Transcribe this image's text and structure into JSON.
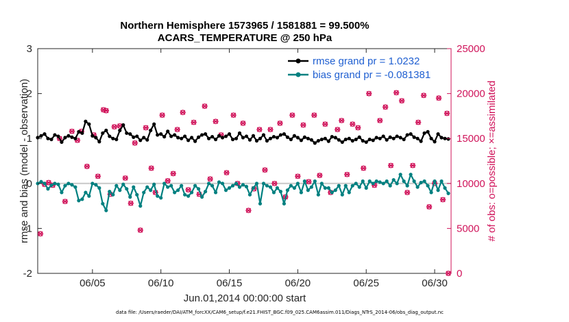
{
  "chart_data": {
    "type": "line",
    "title_line1": "Northern Hemisphere 1573965 / 1581881 = 99.500%",
    "title_line2": "ACARS_TEMPERATURE @ 250 hPa",
    "xlabel": "Jun.01,2014 00:00:00 start",
    "ylabel_left": "rmse and bias (model - observation)",
    "ylabel_right": "# of obs: o=possible; ×=assimilated",
    "xlim": [
      1,
      31.2
    ],
    "ylim_left": [
      -2,
      3
    ],
    "ylim_right": [
      0,
      25000
    ],
    "x_ticks": [
      5,
      10,
      15,
      20,
      25,
      30
    ],
    "x_tick_labels": [
      "06/05",
      "06/10",
      "06/15",
      "06/20",
      "06/25",
      "06/30"
    ],
    "y_ticks_left": [
      -2,
      -1,
      0,
      1,
      2,
      3
    ],
    "y_tick_labels_left": [
      "-2",
      "-1",
      "0",
      "1",
      "2",
      "3"
    ],
    "y_ticks_right": [
      0,
      5000,
      10000,
      15000,
      20000,
      25000
    ],
    "y_tick_labels_right": [
      "0",
      "5000",
      "10000",
      "15000",
      "20000",
      "25000"
    ],
    "zero_line": 0,
    "legend": {
      "location": "top-right",
      "entries": [
        "rmse grand pr = 1.0232",
        "bias grand pr = -0.081381"
      ]
    },
    "colors": {
      "rmse": "#000000",
      "bias": "#008080",
      "obs": "#d0135a",
      "axis": "#262626",
      "zero_line": "#c8c8c8",
      "legend_text": "#1f5fd1"
    },
    "x": [
      1.0,
      1.25,
      1.5,
      1.75,
      2.0,
      2.25,
      2.5,
      2.75,
      3.0,
      3.25,
      3.5,
      3.75,
      4.0,
      4.25,
      4.5,
      4.75,
      5.0,
      5.25,
      5.5,
      5.75,
      6.0,
      6.25,
      6.5,
      6.75,
      7.0,
      7.25,
      7.5,
      7.75,
      8.0,
      8.25,
      8.5,
      8.75,
      9.0,
      9.25,
      9.5,
      9.75,
      10.0,
      10.25,
      10.5,
      10.75,
      11.0,
      11.25,
      11.5,
      11.75,
      12.0,
      12.25,
      12.5,
      12.75,
      13.0,
      13.25,
      13.5,
      13.75,
      14.0,
      14.25,
      14.5,
      14.75,
      15.0,
      15.25,
      15.5,
      15.75,
      16.0,
      16.25,
      16.5,
      16.75,
      17.0,
      17.25,
      17.5,
      17.75,
      18.0,
      18.25,
      18.5,
      18.75,
      19.0,
      19.25,
      19.5,
      19.75,
      20.0,
      20.25,
      20.5,
      20.75,
      21.0,
      21.25,
      21.5,
      21.75,
      22.0,
      22.25,
      22.5,
      22.75,
      23.0,
      23.25,
      23.5,
      23.75,
      24.0,
      24.25,
      24.5,
      24.75,
      25.0,
      25.25,
      25.5,
      25.75,
      26.0,
      26.25,
      26.5,
      26.75,
      27.0,
      27.25,
      27.5,
      27.75,
      28.0,
      28.25,
      28.5,
      28.75,
      29.0,
      29.25,
      29.5,
      29.75,
      30.0,
      30.25,
      30.5,
      30.75,
      31.0
    ],
    "series": [
      {
        "name": "rmse",
        "values": [
          1.02,
          1.06,
          1.1,
          1.0,
          0.98,
          1.08,
          1.05,
          0.92,
          1.02,
          1.06,
          1.03,
          1.0,
          1.15,
          1.12,
          1.38,
          1.32,
          1.06,
          1.02,
          0.93,
          1.12,
          1.18,
          1.05,
          1.0,
          0.98,
          1.18,
          1.3,
          1.12,
          1.1,
          1.03,
          1.05,
          0.96,
          1.02,
          0.97,
          1.18,
          1.32,
          1.08,
          1.1,
          1.04,
          1.16,
          1.05,
          1.08,
          1.02,
          1.0,
          1.05,
          0.96,
          1.02,
          0.94,
          1.03,
          1.08,
          1.1,
          1.0,
          1.04,
          0.98,
          1.06,
          1.02,
          1.05,
          1.1,
          0.98,
          1.0,
          1.12,
          1.02,
          1.05,
          0.97,
          1.06,
          0.95,
          1.0,
          1.08,
          0.95,
          1.0,
          1.04,
          1.02,
          1.08,
          1.1,
          1.03,
          0.98,
          1.06,
          1.02,
          0.96,
          1.03,
          1.0,
          0.97,
          0.9,
          0.95,
          0.98,
          1.0,
          0.94,
          1.04,
          1.02,
          0.97,
          0.92,
          0.98,
          1.0,
          0.95,
          0.98,
          1.03,
          0.95,
          0.92,
          0.98,
          0.96,
          1.02,
          1.0,
          1.05,
          0.97,
          1.03,
          1.0,
          1.05,
          1.02,
          0.98,
          1.08,
          1.1,
          1.03,
          1.0,
          0.94,
          1.12,
          1.15,
          1.0,
          0.93,
          1.1,
          1.02,
          1.0,
          0.99
        ]
      },
      {
        "name": "bias",
        "values": [
          0.0,
          0.04,
          0.0,
          -0.12,
          -0.04,
          0.0,
          -0.02,
          -0.2,
          -0.05,
          0.0,
          -0.03,
          -0.08,
          -0.38,
          -0.35,
          -0.2,
          -0.28,
          0.0,
          -0.03,
          -0.1,
          -0.45,
          -0.6,
          -0.18,
          -0.25,
          -0.05,
          -0.15,
          -0.02,
          -0.12,
          -0.3,
          -0.08,
          -0.25,
          -0.5,
          -0.2,
          -0.08,
          -0.15,
          -0.02,
          -0.28,
          -0.32,
          0.0,
          -0.08,
          -0.05,
          -0.2,
          -0.15,
          -0.05,
          -0.25,
          -0.28,
          -0.2,
          -0.05,
          -0.12,
          -0.3,
          -0.18,
          0.0,
          -0.05,
          -0.2,
          0.03,
          0.0,
          -0.15,
          -0.1,
          -0.05,
          0.0,
          -0.08,
          -0.03,
          -0.07,
          -0.25,
          -0.1,
          0.0,
          -0.45,
          0.0,
          -0.05,
          -0.08,
          -0.2,
          -0.1,
          -0.18,
          -0.45,
          -0.15,
          -0.05,
          -0.1,
          0.0,
          -0.2,
          0.05,
          -0.15,
          -0.08,
          0.05,
          -0.25,
          0.0,
          -0.1,
          -0.1,
          -0.2,
          -0.15,
          -0.05,
          -0.25,
          -0.05,
          -0.2,
          -0.05,
          0.0,
          -0.08,
          0.05,
          -0.1,
          0.05,
          0.0,
          0.05,
          0.03,
          0.0,
          0.05,
          -0.05,
          0.08,
          0.0,
          0.2,
          0.05,
          -0.05,
          0.2,
          0.05,
          -0.08,
          0.02,
          0.05,
          -0.05,
          -0.2,
          0.05,
          -0.15,
          0.05,
          -0.1,
          -0.22
        ]
      }
    ],
    "obs_possible": [
      [
        1.2,
        4400
      ],
      [
        1.5,
        9900
      ],
      [
        1.8,
        10100
      ],
      [
        2.1,
        9800
      ],
      [
        2.6,
        15000
      ],
      [
        3.0,
        8000
      ],
      [
        3.5,
        15800
      ],
      [
        3.9,
        14800
      ],
      [
        4.2,
        15800
      ],
      [
        4.6,
        11900
      ],
      [
        5.1,
        15400
      ],
      [
        5.4,
        10800
      ],
      [
        5.8,
        18200
      ],
      [
        6.0,
        18100
      ],
      [
        6.3,
        8800
      ],
      [
        6.6,
        16300
      ],
      [
        7.0,
        16400
      ],
      [
        7.4,
        10600
      ],
      [
        7.8,
        7800
      ],
      [
        8.1,
        14500
      ],
      [
        8.5,
        4800
      ],
      [
        8.9,
        16200
      ],
      [
        9.3,
        11700
      ],
      [
        9.6,
        9000
      ],
      [
        10.1,
        17600
      ],
      [
        10.5,
        10300
      ],
      [
        10.9,
        11100
      ],
      [
        11.2,
        16000
      ],
      [
        11.6,
        17900
      ],
      [
        12.0,
        9300
      ],
      [
        12.4,
        16800
      ],
      [
        12.8,
        8800
      ],
      [
        13.2,
        18600
      ],
      [
        13.6,
        10500
      ],
      [
        14.0,
        16900
      ],
      [
        14.4,
        15400
      ],
      [
        14.8,
        11200
      ],
      [
        15.3,
        17600
      ],
      [
        15.6,
        10000
      ],
      [
        16.0,
        16700
      ],
      [
        16.4,
        7000
      ],
      [
        16.8,
        9400
      ],
      [
        17.2,
        16000
      ],
      [
        17.6,
        11500
      ],
      [
        18.0,
        16000
      ],
      [
        18.3,
        10000
      ],
      [
        18.7,
        16700
      ],
      [
        19.1,
        8500
      ],
      [
        19.6,
        17600
      ],
      [
        20.0,
        10800
      ],
      [
        20.4,
        16500
      ],
      [
        20.8,
        10200
      ],
      [
        21.2,
        17600
      ],
      [
        21.6,
        10900
      ],
      [
        22.0,
        16600
      ],
      [
        22.4,
        9000
      ],
      [
        22.9,
        16000
      ],
      [
        23.2,
        17000
      ],
      [
        23.6,
        11000
      ],
      [
        24.0,
        16600
      ],
      [
        24.4,
        16200
      ],
      [
        24.8,
        11700
      ],
      [
        25.2,
        20000
      ],
      [
        25.6,
        9800
      ],
      [
        26.0,
        17000
      ],
      [
        26.4,
        18500
      ],
      [
        26.8,
        12000
      ],
      [
        27.2,
        20100
      ],
      [
        27.6,
        19200
      ],
      [
        28.0,
        9000
      ],
      [
        28.4,
        12000
      ],
      [
        28.8,
        16800
      ],
      [
        29.2,
        19800
      ],
      [
        29.6,
        7400
      ],
      [
        30.0,
        10000
      ],
      [
        30.3,
        19500
      ],
      [
        30.6,
        8200
      ],
      [
        30.9,
        17800
      ],
      [
        31.0,
        0
      ]
    ]
  }
}
